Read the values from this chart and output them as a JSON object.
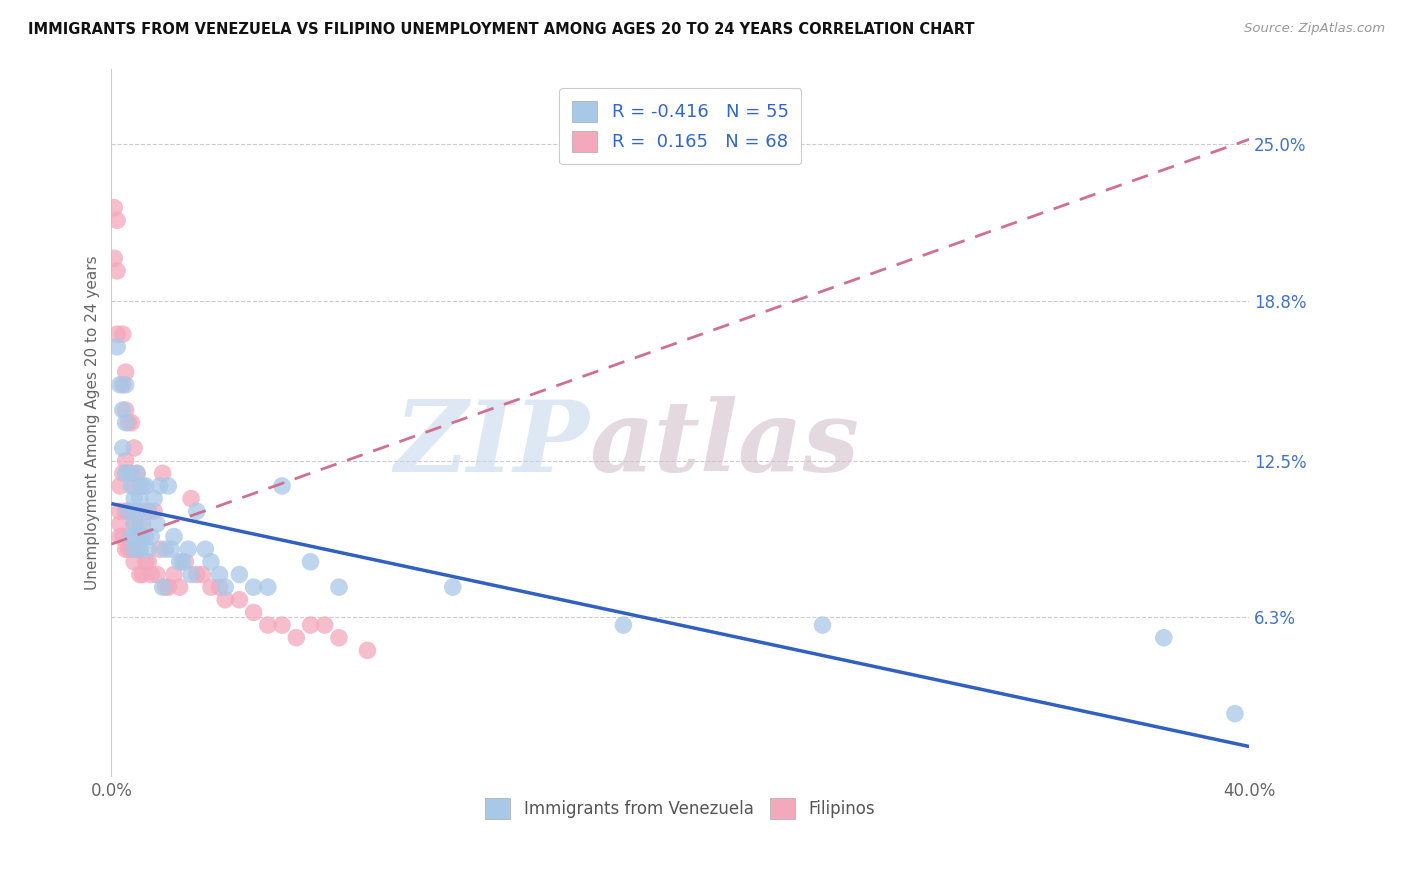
{
  "title": "IMMIGRANTS FROM VENEZUELA VS FILIPINO UNEMPLOYMENT AMONG AGES 20 TO 24 YEARS CORRELATION CHART",
  "source": "Source: ZipAtlas.com",
  "ylabel": "Unemployment Among Ages 20 to 24 years",
  "xlim": [
    0.0,
    0.4
  ],
  "ylim": [
    0.0,
    0.28
  ],
  "xtick_vals": [
    0.0,
    0.05,
    0.1,
    0.15,
    0.2,
    0.25,
    0.3,
    0.35,
    0.4
  ],
  "xticklabels": [
    "0.0%",
    "",
    "",
    "",
    "",
    "",
    "",
    "",
    "40.0%"
  ],
  "yticks_right": [
    0.063,
    0.125,
    0.188,
    0.25
  ],
  "ytick_right_labels": [
    "6.3%",
    "12.5%",
    "18.8%",
    "25.0%"
  ],
  "blue_R": -0.416,
  "blue_N": 55,
  "pink_R": 0.165,
  "pink_N": 68,
  "blue_color": "#a8c8e8",
  "pink_color": "#f4a8bc",
  "blue_line_color": "#3060c0",
  "pink_line_color": "#d07090",
  "legend_label_blue": "Immigrants from Venezuela",
  "legend_label_pink": "Filipinos",
  "blue_scatter_x": [
    0.002,
    0.003,
    0.004,
    0.004,
    0.005,
    0.005,
    0.005,
    0.006,
    0.006,
    0.007,
    0.007,
    0.008,
    0.008,
    0.008,
    0.009,
    0.009,
    0.009,
    0.01,
    0.01,
    0.01,
    0.011,
    0.011,
    0.012,
    0.012,
    0.013,
    0.013,
    0.014,
    0.015,
    0.016,
    0.017,
    0.018,
    0.019,
    0.02,
    0.021,
    0.022,
    0.024,
    0.025,
    0.027,
    0.028,
    0.03,
    0.033,
    0.035,
    0.038,
    0.04,
    0.045,
    0.05,
    0.055,
    0.06,
    0.07,
    0.08,
    0.12,
    0.18,
    0.25,
    0.37,
    0.395
  ],
  "blue_scatter_y": [
    0.17,
    0.155,
    0.145,
    0.13,
    0.155,
    0.14,
    0.12,
    0.12,
    0.105,
    0.115,
    0.095,
    0.11,
    0.1,
    0.09,
    0.095,
    0.12,
    0.105,
    0.095,
    0.11,
    0.09,
    0.1,
    0.115,
    0.115,
    0.095,
    0.105,
    0.09,
    0.095,
    0.11,
    0.1,
    0.115,
    0.075,
    0.09,
    0.115,
    0.09,
    0.095,
    0.085,
    0.085,
    0.09,
    0.08,
    0.105,
    0.09,
    0.085,
    0.08,
    0.075,
    0.08,
    0.075,
    0.075,
    0.115,
    0.085,
    0.075,
    0.075,
    0.06,
    0.06,
    0.055,
    0.025
  ],
  "pink_scatter_x": [
    0.001,
    0.001,
    0.002,
    0.002,
    0.002,
    0.003,
    0.003,
    0.003,
    0.003,
    0.004,
    0.004,
    0.004,
    0.004,
    0.005,
    0.005,
    0.005,
    0.005,
    0.005,
    0.006,
    0.006,
    0.006,
    0.006,
    0.007,
    0.007,
    0.007,
    0.007,
    0.008,
    0.008,
    0.008,
    0.008,
    0.009,
    0.009,
    0.009,
    0.01,
    0.01,
    0.01,
    0.01,
    0.011,
    0.011,
    0.012,
    0.012,
    0.013,
    0.013,
    0.014,
    0.015,
    0.016,
    0.017,
    0.018,
    0.019,
    0.02,
    0.022,
    0.024,
    0.026,
    0.028,
    0.03,
    0.032,
    0.035,
    0.038,
    0.04,
    0.045,
    0.05,
    0.055,
    0.06,
    0.065,
    0.07,
    0.075,
    0.08,
    0.09
  ],
  "pink_scatter_y": [
    0.225,
    0.205,
    0.22,
    0.2,
    0.175,
    0.105,
    0.1,
    0.115,
    0.095,
    0.175,
    0.155,
    0.12,
    0.095,
    0.16,
    0.145,
    0.125,
    0.105,
    0.09,
    0.14,
    0.12,
    0.105,
    0.09,
    0.14,
    0.12,
    0.105,
    0.09,
    0.13,
    0.115,
    0.1,
    0.085,
    0.12,
    0.105,
    0.09,
    0.115,
    0.1,
    0.09,
    0.08,
    0.095,
    0.08,
    0.105,
    0.085,
    0.105,
    0.085,
    0.08,
    0.105,
    0.08,
    0.09,
    0.12,
    0.075,
    0.075,
    0.08,
    0.075,
    0.085,
    0.11,
    0.08,
    0.08,
    0.075,
    0.075,
    0.07,
    0.07,
    0.065,
    0.06,
    0.06,
    0.055,
    0.06,
    0.06,
    0.055,
    0.05
  ],
  "blue_line_x0": 0.0,
  "blue_line_y0": 0.108,
  "blue_line_x1": 0.4,
  "blue_line_y1": 0.012,
  "pink_line_x0": 0.0,
  "pink_line_y0": 0.092,
  "pink_line_x1": 0.4,
  "pink_line_y1": 0.252
}
